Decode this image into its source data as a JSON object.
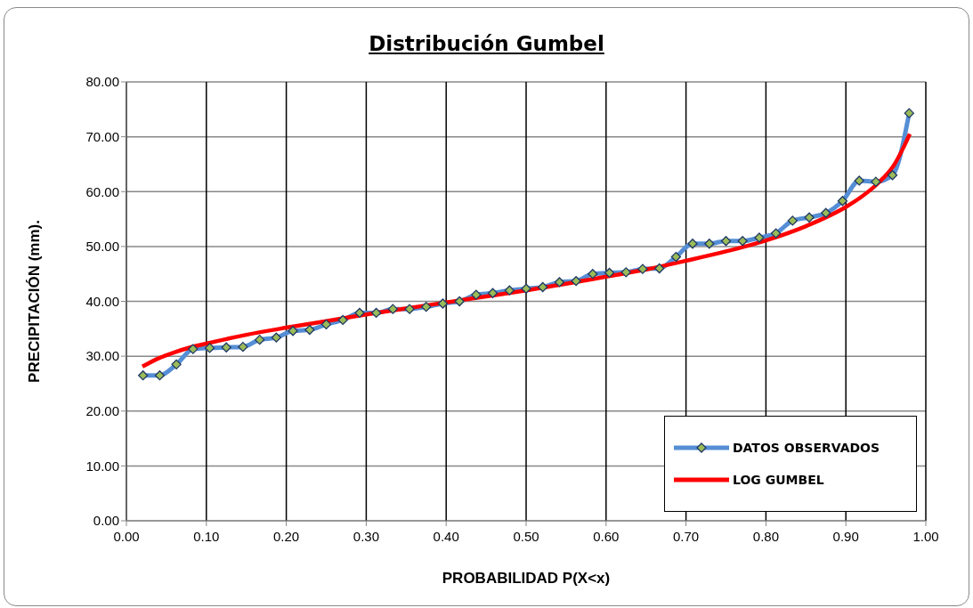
{
  "chart_data": {
    "type": "line",
    "title": "Distribución Gumbel",
    "xlabel": "PROBABILIDAD P(X<x)",
    "ylabel": "PRECIPITACIÓN (mm).",
    "xlim": [
      0,
      1
    ],
    "xticks": [
      {
        "value": 0,
        "label": "0.00"
      },
      {
        "value": 0.1,
        "label": "0.10"
      },
      {
        "value": 0.2,
        "label": "0.20"
      },
      {
        "value": 0.3,
        "label": "0.30"
      },
      {
        "value": 0.4,
        "label": "0.40"
      },
      {
        "value": 0.5,
        "label": "0.50"
      },
      {
        "value": 0.6,
        "label": "0.60"
      },
      {
        "value": 0.7,
        "label": "0.70"
      },
      {
        "value": 0.8,
        "label": "0.80"
      },
      {
        "value": 0.9,
        "label": "0.90"
      },
      {
        "value": 1,
        "label": "1.00"
      }
    ],
    "ylim": [
      0,
      80
    ],
    "yticks": [
      {
        "value": 0,
        "label": "0.00"
      },
      {
        "value": 10,
        "label": "10.00"
      },
      {
        "value": 20,
        "label": "20.00"
      },
      {
        "value": 30,
        "label": "30.00"
      },
      {
        "value": 40,
        "label": "40.00"
      },
      {
        "value": 50,
        "label": "50.00"
      },
      {
        "value": 60,
        "label": "60.00"
      },
      {
        "value": 70,
        "label": "70.00"
      },
      {
        "value": 80,
        "label": "80.00"
      }
    ],
    "grid": true,
    "legend": "bottom right",
    "series": [
      {
        "name": "DATOS OBSERVADOS",
        "color": "#558ed5",
        "marker": "diamond",
        "x": [
          0.0208,
          0.0417,
          0.0625,
          0.0833,
          0.1042,
          0.125,
          0.1458,
          0.1667,
          0.1875,
          0.2083,
          0.2292,
          0.25,
          0.2708,
          0.2917,
          0.3125,
          0.3333,
          0.3542,
          0.375,
          0.3958,
          0.4167,
          0.4375,
          0.4583,
          0.4792,
          0.5,
          0.5208,
          0.5417,
          0.5625,
          0.5833,
          0.6042,
          0.625,
          0.6458,
          0.6667,
          0.6875,
          0.7083,
          0.7292,
          0.75,
          0.7708,
          0.7917,
          0.8125,
          0.8333,
          0.8542,
          0.875,
          0.8958,
          0.9167,
          0.9375,
          0.9583,
          0.9792
        ],
        "values": [
          26.5,
          26.5,
          28.5,
          31.3,
          31.5,
          31.6,
          31.7,
          33.0,
          33.4,
          34.6,
          34.8,
          35.8,
          36.6,
          37.9,
          37.9,
          38.6,
          38.6,
          39.0,
          39.6,
          40.0,
          41.2,
          41.5,
          42.0,
          42.3,
          42.6,
          43.5,
          43.7,
          45.0,
          45.2,
          45.3,
          45.9,
          46.0,
          48.1,
          50.5,
          50.5,
          51.0,
          51.0,
          51.6,
          52.4,
          54.7,
          55.3,
          56.1,
          58.3,
          62.0,
          61.8,
          63.0,
          74.3
        ]
      },
      {
        "name": "LOG GUMBEL",
        "color": "#ff0000",
        "marker": "none",
        "x": [
          0.02,
          0.04,
          0.06,
          0.08,
          0.1,
          0.15,
          0.2,
          0.25,
          0.3,
          0.35,
          0.4,
          0.45,
          0.5,
          0.55,
          0.6,
          0.65,
          0.7,
          0.75,
          0.8,
          0.85,
          0.9,
          0.92,
          0.94,
          0.96,
          0.98
        ],
        "values": [
          28.1,
          29.6,
          30.7,
          31.6,
          32.3,
          33.9,
          35.2,
          36.4,
          37.6,
          38.7,
          39.8,
          40.9,
          42.0,
          43.2,
          44.5,
          45.8,
          47.4,
          49.1,
          51.1,
          53.7,
          57.2,
          59.1,
          61.5,
          64.8,
          70.5
        ]
      }
    ]
  }
}
